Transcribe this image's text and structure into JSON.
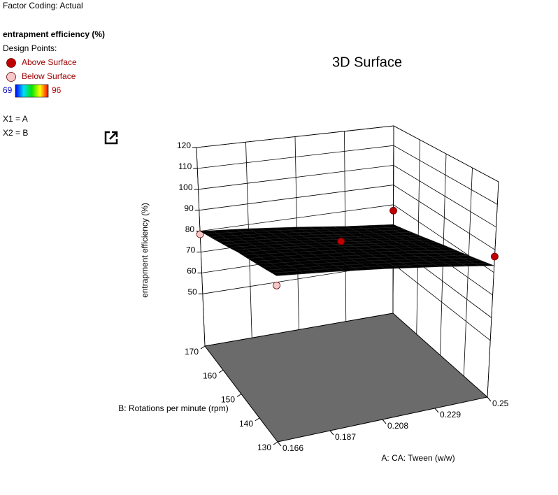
{
  "panel": {
    "factor_coding": "Factor Coding: Actual",
    "response": "entrapment efficiency (%)",
    "design_points": "Design Points:",
    "factors": [
      "X1 = A",
      "X2 = B"
    ]
  },
  "chart_data": {
    "type": "surface3d",
    "title": "3D Surface",
    "x_label": "A: CA: Tween  (w/w)",
    "y_label": "B: Rotations per minute (rpm)",
    "z_label": "entrapment efficiency (%)",
    "xlim": [
      0.166,
      0.25
    ],
    "xticks": [
      0.166,
      0.187,
      0.208,
      0.229,
      0.25
    ],
    "ylim": [
      130,
      170
    ],
    "yticks": [
      130,
      140,
      150,
      160,
      170
    ],
    "zlim": [
      25,
      120
    ],
    "zticks": [
      50,
      60,
      70,
      80,
      90,
      100,
      110,
      120
    ],
    "color_range": [
      69,
      96
    ],
    "surface_x": [
      0.166,
      0.187,
      0.208,
      0.229,
      0.25
    ],
    "surface_y": [
      130,
      140,
      150,
      160,
      170
    ],
    "surface_z": [
      [
        94,
        92,
        89.5,
        86.5,
        83
      ],
      [
        91,
        89,
        86.5,
        83.5,
        80
      ],
      [
        88,
        86,
        83.5,
        80.5,
        77
      ],
      [
        84,
        82,
        79.5,
        76.5,
        73.5
      ],
      [
        80,
        78,
        75.5,
        72.5,
        70
      ]
    ],
    "contour_levels": [
      70,
      75,
      80,
      85,
      90
    ],
    "series": [
      {
        "name": "Above Surface",
        "color": "#c00000",
        "x": [
          0.25,
          0.208,
          0.25
        ],
        "y": [
          170,
          150,
          130
        ],
        "z": [
          77,
          86,
          87
        ]
      },
      {
        "name": "Below Surface",
        "color": "#f8c8c8",
        "x": [
          0.166,
          0.166
        ],
        "y": [
          170,
          130
        ],
        "z": [
          78.5,
          90
        ]
      }
    ]
  }
}
